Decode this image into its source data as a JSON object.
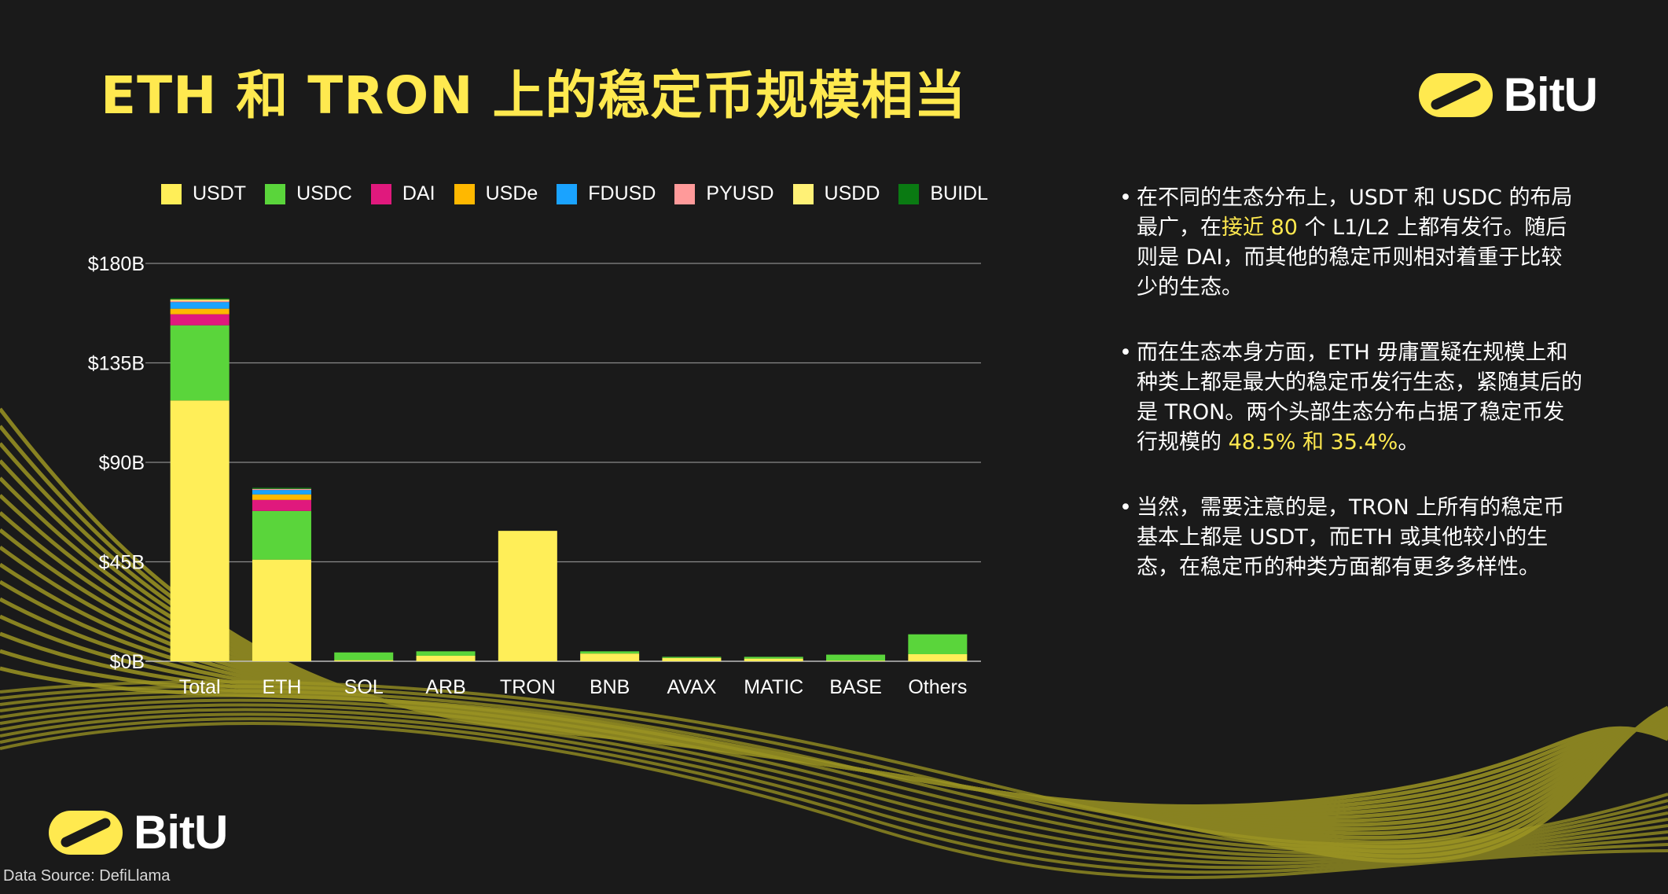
{
  "title": "ETH 和 TRON 上的稳定币规模相当",
  "logo": {
    "word": "BitU",
    "color": "#ffe94f"
  },
  "source": "Data Source: DefiLlama",
  "bullets": [
    {
      "pre": "在不同的生态分布上，USDT 和 USDC 的布局最广，在",
      "hl": "接近 80",
      "post": " 个 L1/L2 上都有发行。随后则是 DAI，而其他的稳定币则相对着重于比较少的生态。"
    },
    {
      "pre": "而在生态本身方面，ETH 毋庸置疑在规模上和种类上都是最大的稳定币发行生态，紧随其后的是 TRON。两个头部生态分布占据了稳定币发行规模的 ",
      "hl": "48.5% 和 35.4%",
      "post": "。"
    },
    {
      "pre": "当然，需要注意的是，TRON 上所有的稳定币基本上都是 USDT，而ETH 或其他较小的生态，在稳定币的种类方面都有更多多样性。",
      "hl": "",
      "post": ""
    }
  ],
  "chart_data": {
    "type": "bar",
    "stacked": true,
    "categories": [
      "Total",
      "ETH",
      "SOL",
      "ARB",
      "TRON",
      "BNB",
      "AVAX",
      "MATIC",
      "BASE",
      "Others"
    ],
    "y_ticks": [
      "$0B",
      "$45B",
      "$90B",
      "$135B",
      "$180B"
    ],
    "ylim": [
      0,
      180
    ],
    "grid": true,
    "legend_position": "top",
    "series": [
      {
        "name": "USDT",
        "color": "#ffee58",
        "values": [
          118,
          46,
          0.5,
          2.5,
          59,
          3.5,
          1.5,
          1.2,
          0.3,
          3.2
        ]
      },
      {
        "name": "USDC",
        "color": "#5ad53b",
        "values": [
          34,
          22,
          3.5,
          2,
          0,
          1,
          0.5,
          0.8,
          2.7,
          9
        ]
      },
      {
        "name": "DAI",
        "color": "#e0197d",
        "values": [
          5,
          5,
          0,
          0,
          0,
          0,
          0,
          0,
          0,
          0
        ]
      },
      {
        "name": "USDe",
        "color": "#ffb800",
        "values": [
          2.5,
          2.5,
          0,
          0,
          0,
          0,
          0,
          0,
          0,
          0
        ]
      },
      {
        "name": "FDUSD",
        "color": "#1aa3ff",
        "values": [
          3,
          2,
          0,
          0,
          0,
          0,
          0,
          0,
          0,
          0
        ]
      },
      {
        "name": "PYUSD",
        "color": "#ff9a9a",
        "values": [
          0.5,
          0.5,
          0,
          0,
          0,
          0,
          0,
          0,
          0,
          0
        ]
      },
      {
        "name": "USDD",
        "color": "#fff176",
        "values": [
          0.7,
          0,
          0,
          0,
          0,
          0,
          0,
          0,
          0,
          0
        ]
      },
      {
        "name": "BUIDL",
        "color": "#0a7a12",
        "values": [
          0.5,
          0.5,
          0,
          0,
          0,
          0,
          0,
          0,
          0,
          0
        ]
      }
    ]
  }
}
